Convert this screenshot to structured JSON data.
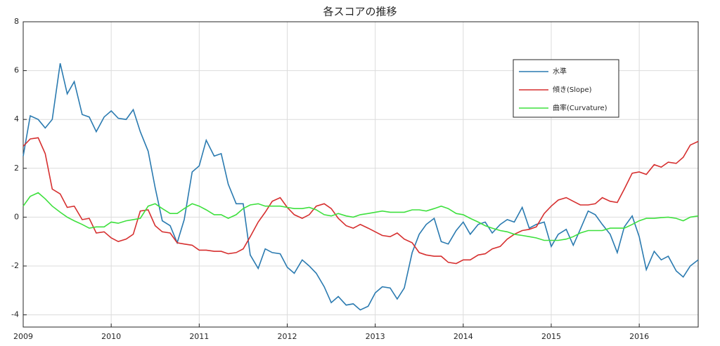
{
  "chart_data": {
    "type": "line",
    "title": "各スコアの推移",
    "x": [
      2009,
      2009.08,
      2009.17,
      2009.25,
      2009.33,
      2009.42,
      2009.5,
      2009.58,
      2009.67,
      2009.75,
      2009.83,
      2009.92,
      2010,
      2010.08,
      2010.17,
      2010.25,
      2010.33,
      2010.42,
      2010.5,
      2010.58,
      2010.67,
      2010.75,
      2010.83,
      2010.92,
      2011,
      2011.08,
      2011.17,
      2011.25,
      2011.33,
      2011.42,
      2011.5,
      2011.58,
      2011.67,
      2011.75,
      2011.83,
      2011.92,
      2012,
      2012.08,
      2012.17,
      2012.25,
      2012.33,
      2012.42,
      2012.5,
      2012.58,
      2012.67,
      2012.75,
      2012.83,
      2012.92,
      2013,
      2013.08,
      2013.17,
      2013.25,
      2013.33,
      2013.42,
      2013.5,
      2013.58,
      2013.67,
      2013.75,
      2013.83,
      2013.92,
      2014,
      2014.08,
      2014.17,
      2014.25,
      2014.33,
      2014.42,
      2014.5,
      2014.58,
      2014.67,
      2014.75,
      2014.83,
      2014.92,
      2015,
      2015.08,
      2015.17,
      2015.25,
      2015.33,
      2015.42,
      2015.5,
      2015.58,
      2015.67,
      2015.75,
      2015.83,
      2015.92,
      2016,
      2016.08,
      2016.17,
      2016.25,
      2016.33,
      2016.42,
      2016.5,
      2016.58,
      2016.67
    ],
    "series": [
      {
        "name": "水準",
        "color": "#2a7ab0",
        "values": [
          2.5,
          4.15,
          4.0,
          3.65,
          4.0,
          6.3,
          5.05,
          5.55,
          4.2,
          4.1,
          3.5,
          4.1,
          4.35,
          4.05,
          4.0,
          4.4,
          3.5,
          2.7,
          1.2,
          -0.15,
          -0.35,
          -1.05,
          -0.1,
          1.85,
          2.1,
          3.15,
          2.5,
          2.6,
          1.35,
          0.55,
          0.55,
          -1.55,
          -2.1,
          -1.3,
          -1.45,
          -1.5,
          -2.05,
          -2.3,
          -1.75,
          -2.0,
          -2.3,
          -2.85,
          -3.5,
          -3.25,
          -3.6,
          -3.55,
          -3.8,
          -3.65,
          -3.1,
          -2.85,
          -2.9,
          -3.35,
          -2.9,
          -1.45,
          -0.7,
          -0.3,
          -0.05,
          -1.0,
          -1.1,
          -0.55,
          -0.2,
          -0.7,
          -0.3,
          -0.2,
          -0.65,
          -0.3,
          -0.1,
          -0.2,
          0.4,
          -0.45,
          -0.3,
          -0.2,
          -1.2,
          -0.7,
          -0.5,
          -1.15,
          -0.5,
          0.25,
          0.1,
          -0.3,
          -0.7,
          -1.45,
          -0.4,
          0.05,
          -0.8,
          -2.15,
          -1.4,
          -1.75,
          -1.6,
          -2.2,
          -2.45,
          -2.0,
          -1.75
        ]
      },
      {
        "name": "傾き(Slope)",
        "color": "#d62f2f",
        "values": [
          2.9,
          3.2,
          3.25,
          2.6,
          1.15,
          0.95,
          0.4,
          0.45,
          -0.1,
          -0.05,
          -0.65,
          -0.6,
          -0.85,
          -1.0,
          -0.9,
          -0.7,
          0.25,
          0.3,
          -0.35,
          -0.6,
          -0.65,
          -1.05,
          -1.1,
          -1.15,
          -1.35,
          -1.35,
          -1.4,
          -1.4,
          -1.5,
          -1.45,
          -1.3,
          -0.8,
          -0.2,
          0.2,
          0.65,
          0.8,
          0.4,
          0.1,
          -0.05,
          0.1,
          0.45,
          0.55,
          0.35,
          -0.05,
          -0.35,
          -0.45,
          -0.3,
          -0.45,
          -0.6,
          -0.75,
          -0.8,
          -0.65,
          -0.9,
          -1.05,
          -1.45,
          -1.55,
          -1.6,
          -1.6,
          -1.85,
          -1.9,
          -1.75,
          -1.75,
          -1.55,
          -1.5,
          -1.3,
          -1.2,
          -0.9,
          -0.7,
          -0.55,
          -0.5,
          -0.4,
          0.15,
          0.45,
          0.7,
          0.8,
          0.65,
          0.5,
          0.5,
          0.55,
          0.8,
          0.65,
          0.6,
          1.15,
          1.8,
          1.85,
          1.75,
          2.15,
          2.05,
          2.25,
          2.2,
          2.45,
          2.95,
          3.1
        ]
      },
      {
        "name": "曲率(Curvature)",
        "color": "#3ee03e",
        "values": [
          0.45,
          0.85,
          1.0,
          0.75,
          0.45,
          0.2,
          0.0,
          -0.15,
          -0.3,
          -0.45,
          -0.4,
          -0.4,
          -0.2,
          -0.25,
          -0.15,
          -0.1,
          -0.05,
          0.45,
          0.55,
          0.35,
          0.15,
          0.15,
          0.35,
          0.55,
          0.45,
          0.3,
          0.1,
          0.1,
          -0.05,
          0.1,
          0.35,
          0.5,
          0.55,
          0.45,
          0.45,
          0.45,
          0.4,
          0.35,
          0.35,
          0.4,
          0.3,
          0.1,
          0.05,
          0.15,
          0.05,
          0.0,
          0.1,
          0.15,
          0.2,
          0.25,
          0.2,
          0.2,
          0.2,
          0.3,
          0.3,
          0.25,
          0.35,
          0.45,
          0.35,
          0.15,
          0.1,
          -0.05,
          -0.2,
          -0.35,
          -0.45,
          -0.55,
          -0.6,
          -0.7,
          -0.75,
          -0.8,
          -0.85,
          -0.95,
          -0.95,
          -0.95,
          -0.9,
          -0.8,
          -0.65,
          -0.55,
          -0.55,
          -0.55,
          -0.45,
          -0.45,
          -0.45,
          -0.3,
          -0.15,
          -0.05,
          -0.05,
          -0.02,
          0.0,
          -0.05,
          -0.15,
          0.0,
          0.05
        ]
      }
    ],
    "xlim": [
      2009,
      2016.67
    ],
    "xticks": [
      2009,
      2010,
      2011,
      2012,
      2013,
      2014,
      2015,
      2016
    ],
    "ylim": [
      -4.5,
      8
    ],
    "yticks": [
      -4,
      -2,
      0,
      2,
      4,
      6,
      8
    ],
    "grid": true,
    "legend": "upper right"
  }
}
